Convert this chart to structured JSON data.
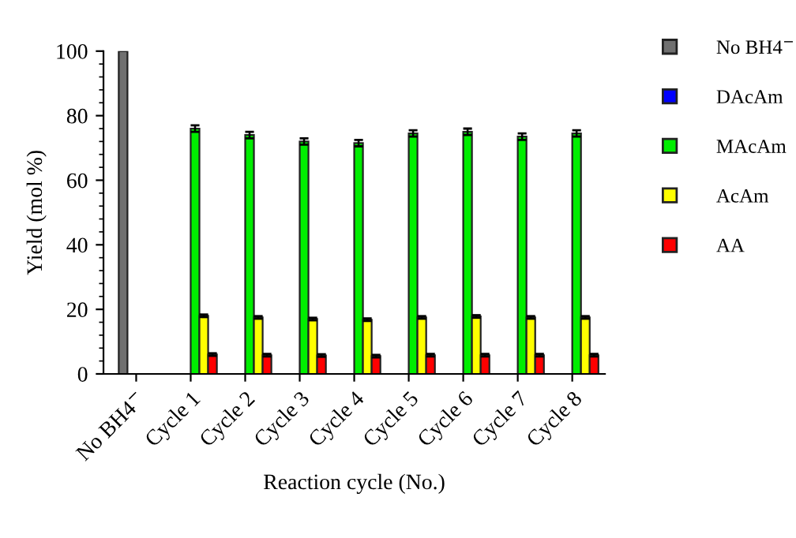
{
  "chart_data": {
    "type": "bar",
    "xlabel": "Reaction cycle (No.)",
    "ylabel": "Yield (mol %)",
    "categories": [
      "No BH4$^{−}$",
      "Cycle 1",
      "Cycle 2",
      "Cycle 3",
      "Cycle 4",
      "Cycle 5",
      "Cycle 6",
      "Cycle 7",
      "Cycle 8"
    ],
    "series": [
      {
        "name": "No BH4$^{−}$",
        "color": "#707070",
        "values": [
          100,
          null,
          null,
          null,
          null,
          null,
          null,
          null,
          null
        ]
      },
      {
        "name": "DAcAm",
        "color": "#0000ff",
        "values": [
          null,
          null,
          null,
          null,
          null,
          null,
          null,
          null,
          null
        ]
      },
      {
        "name": "MAcAm",
        "color": "#00ee00",
        "values": [
          null,
          76,
          74,
          72,
          71.5,
          74.5,
          75,
          73.5,
          74.5
        ],
        "errors": [
          null,
          1,
          1,
          1,
          1,
          1,
          1,
          1,
          1
        ]
      },
      {
        "name": "AcAm",
        "color": "#ffff00",
        "values": [
          null,
          18,
          17.5,
          17,
          16.8,
          17.5,
          17.8,
          17.5,
          17.5
        ],
        "errors": [
          null,
          0.4,
          0.4,
          0.4,
          0.4,
          0.4,
          0.4,
          0.4,
          0.4
        ]
      },
      {
        "name": "AA",
        "color": "#ff0000",
        "values": [
          null,
          6,
          5.8,
          5.7,
          5.5,
          5.8,
          5.8,
          5.8,
          5.8
        ],
        "errors": [
          null,
          0.4,
          0.4,
          0.4,
          0.4,
          0.4,
          0.4,
          0.4,
          0.4
        ]
      }
    ],
    "ylim": [
      0,
      100
    ],
    "yticks": [
      0,
      20,
      40,
      60,
      80,
      100
    ],
    "grid": false,
    "legend": "right"
  }
}
